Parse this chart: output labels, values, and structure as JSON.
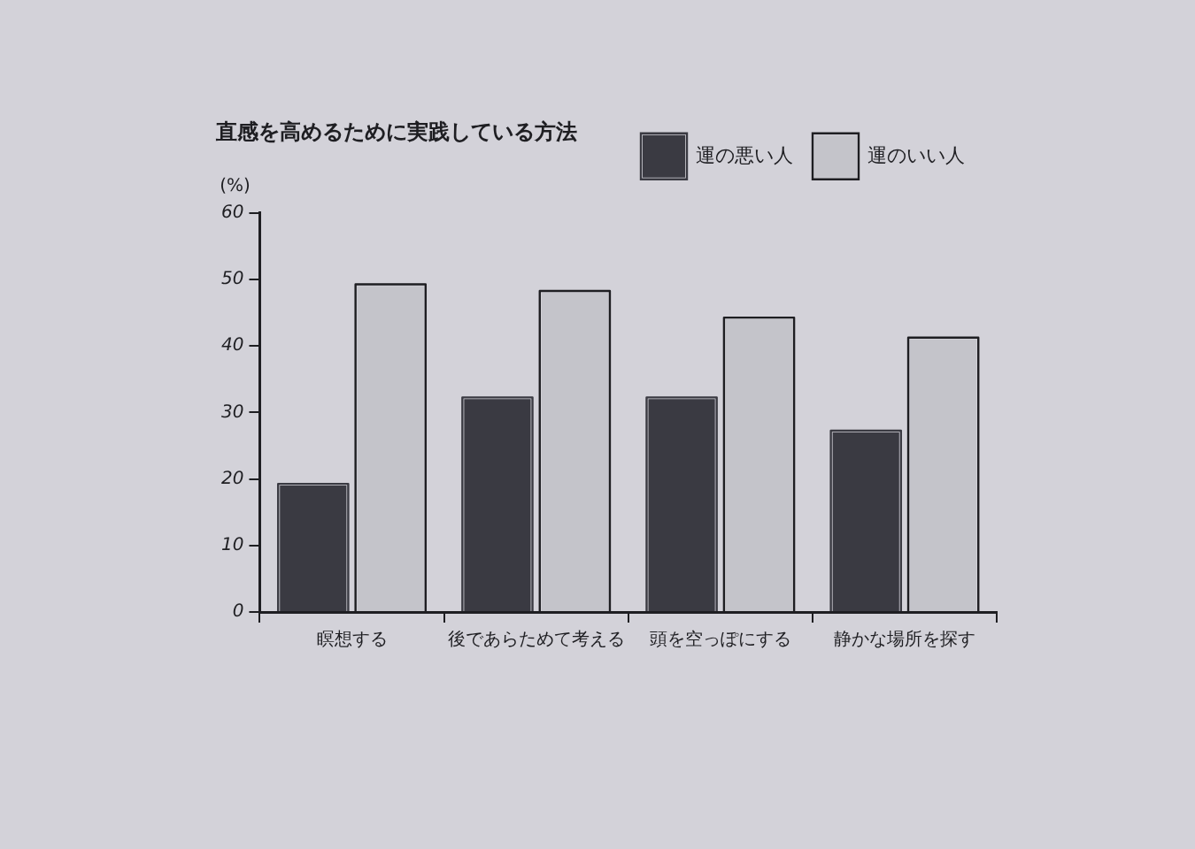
{
  "chart_data": {
    "type": "bar",
    "title": "直感を高めるために実践している方法",
    "ylabel": "(%)",
    "categories": [
      "瞑想する",
      "後であらためて考える",
      "頭を空っぽにする",
      "静かな場所を探す"
    ],
    "series": [
      {
        "name": "運の悪い人",
        "color": "#3a3a42",
        "values": [
          19,
          32,
          32,
          27
        ]
      },
      {
        "name": "運のいい人",
        "color": "#c4c4ca",
        "values": [
          49,
          48,
          44,
          41
        ]
      }
    ],
    "ylim": [
      0,
      60
    ],
    "yticks": [
      0,
      10,
      20,
      30,
      40,
      50,
      60
    ],
    "grid": false,
    "legend": "top right"
  }
}
